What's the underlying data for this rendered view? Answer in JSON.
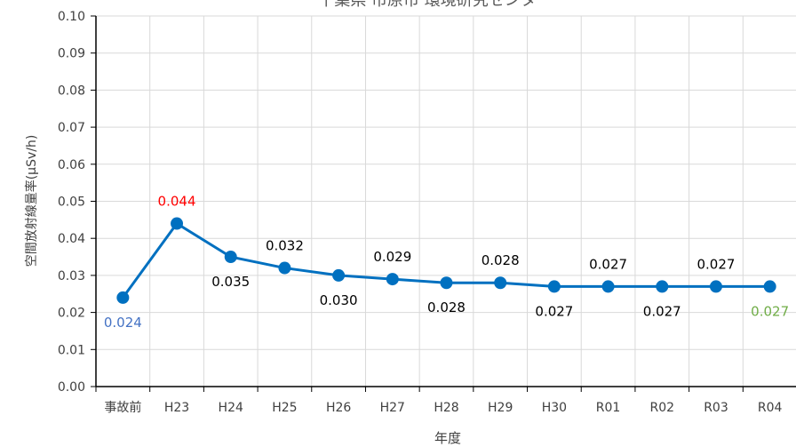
{
  "chart_data": {
    "type": "line",
    "title": "千葉県 市原市 環境研究センター",
    "xlabel": "年度",
    "ylabel": "空間放射線量率(μSv/h)",
    "categories": [
      "事故前",
      "H23",
      "H24",
      "H25",
      "H26",
      "H27",
      "H28",
      "H29",
      "H30",
      "R01",
      "R02",
      "R03",
      "R04"
    ],
    "series": [
      {
        "values": [
          0.024,
          0.044,
          0.035,
          0.032,
          0.03,
          0.029,
          0.028,
          0.028,
          0.027,
          0.027,
          0.027,
          0.027,
          0.027
        ]
      }
    ],
    "data_labels": [
      "0.024",
      "0.044",
      "0.035",
      "0.032",
      "0.030",
      "0.029",
      "0.028",
      "0.028",
      "0.027",
      "0.027",
      "0.027",
      "0.027",
      "0.027"
    ],
    "label_positions": [
      "below",
      "above",
      "below",
      "above",
      "below",
      "above",
      "below",
      "above",
      "below",
      "above",
      "below",
      "above",
      "below"
    ],
    "label_colors": [
      "#4472C4",
      "#FF0000",
      "#000000",
      "#000000",
      "#000000",
      "#000000",
      "#000000",
      "#000000",
      "#000000",
      "#000000",
      "#000000",
      "#000000",
      "#70AD47"
    ],
    "ylim": [
      0,
      0.1
    ],
    "yticks": [
      "0.00",
      "0.01",
      "0.02",
      "0.03",
      "0.04",
      "0.05",
      "0.06",
      "0.07",
      "0.08",
      "0.09",
      "0.10"
    ],
    "grid": true,
    "line_color": "#0070C0"
  }
}
